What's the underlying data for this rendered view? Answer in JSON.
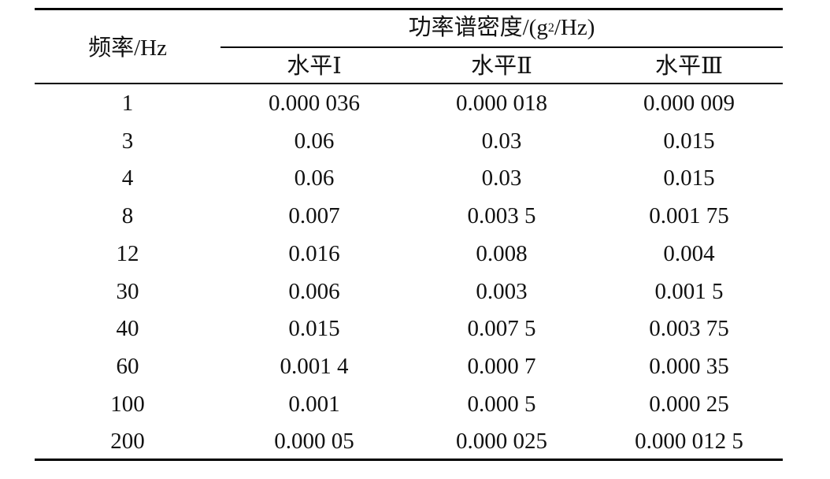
{
  "table": {
    "header": {
      "freq_label": "频率/Hz",
      "psd_label_prefix": "功率谱密度/(g",
      "psd_label_sup": "2",
      "psd_label_suffix": "/Hz)",
      "levels": [
        "水平Ⅰ",
        "水平Ⅱ",
        "水平Ⅲ"
      ]
    },
    "rows": [
      [
        "1",
        "0.000 036",
        "0.000 018",
        "0.000 009"
      ],
      [
        "3",
        "0.06",
        "0.03",
        "0.015"
      ],
      [
        "4",
        "0.06",
        "0.03",
        "0.015"
      ],
      [
        "8",
        "0.007",
        "0.003 5",
        "0.001 75"
      ],
      [
        "12",
        "0.016",
        "0.008",
        "0.004"
      ],
      [
        "30",
        "0.006",
        "0.003",
        "0.001 5"
      ],
      [
        "40",
        "0.015",
        "0.007 5",
        "0.003 75"
      ],
      [
        "60",
        "0.001 4",
        "0.000 7",
        "0.000 35"
      ],
      [
        "100",
        "0.001",
        "0.000 5",
        "0.000 25"
      ],
      [
        "200",
        "0.000 05",
        "0.000 025",
        "0.000 012 5"
      ]
    ]
  }
}
